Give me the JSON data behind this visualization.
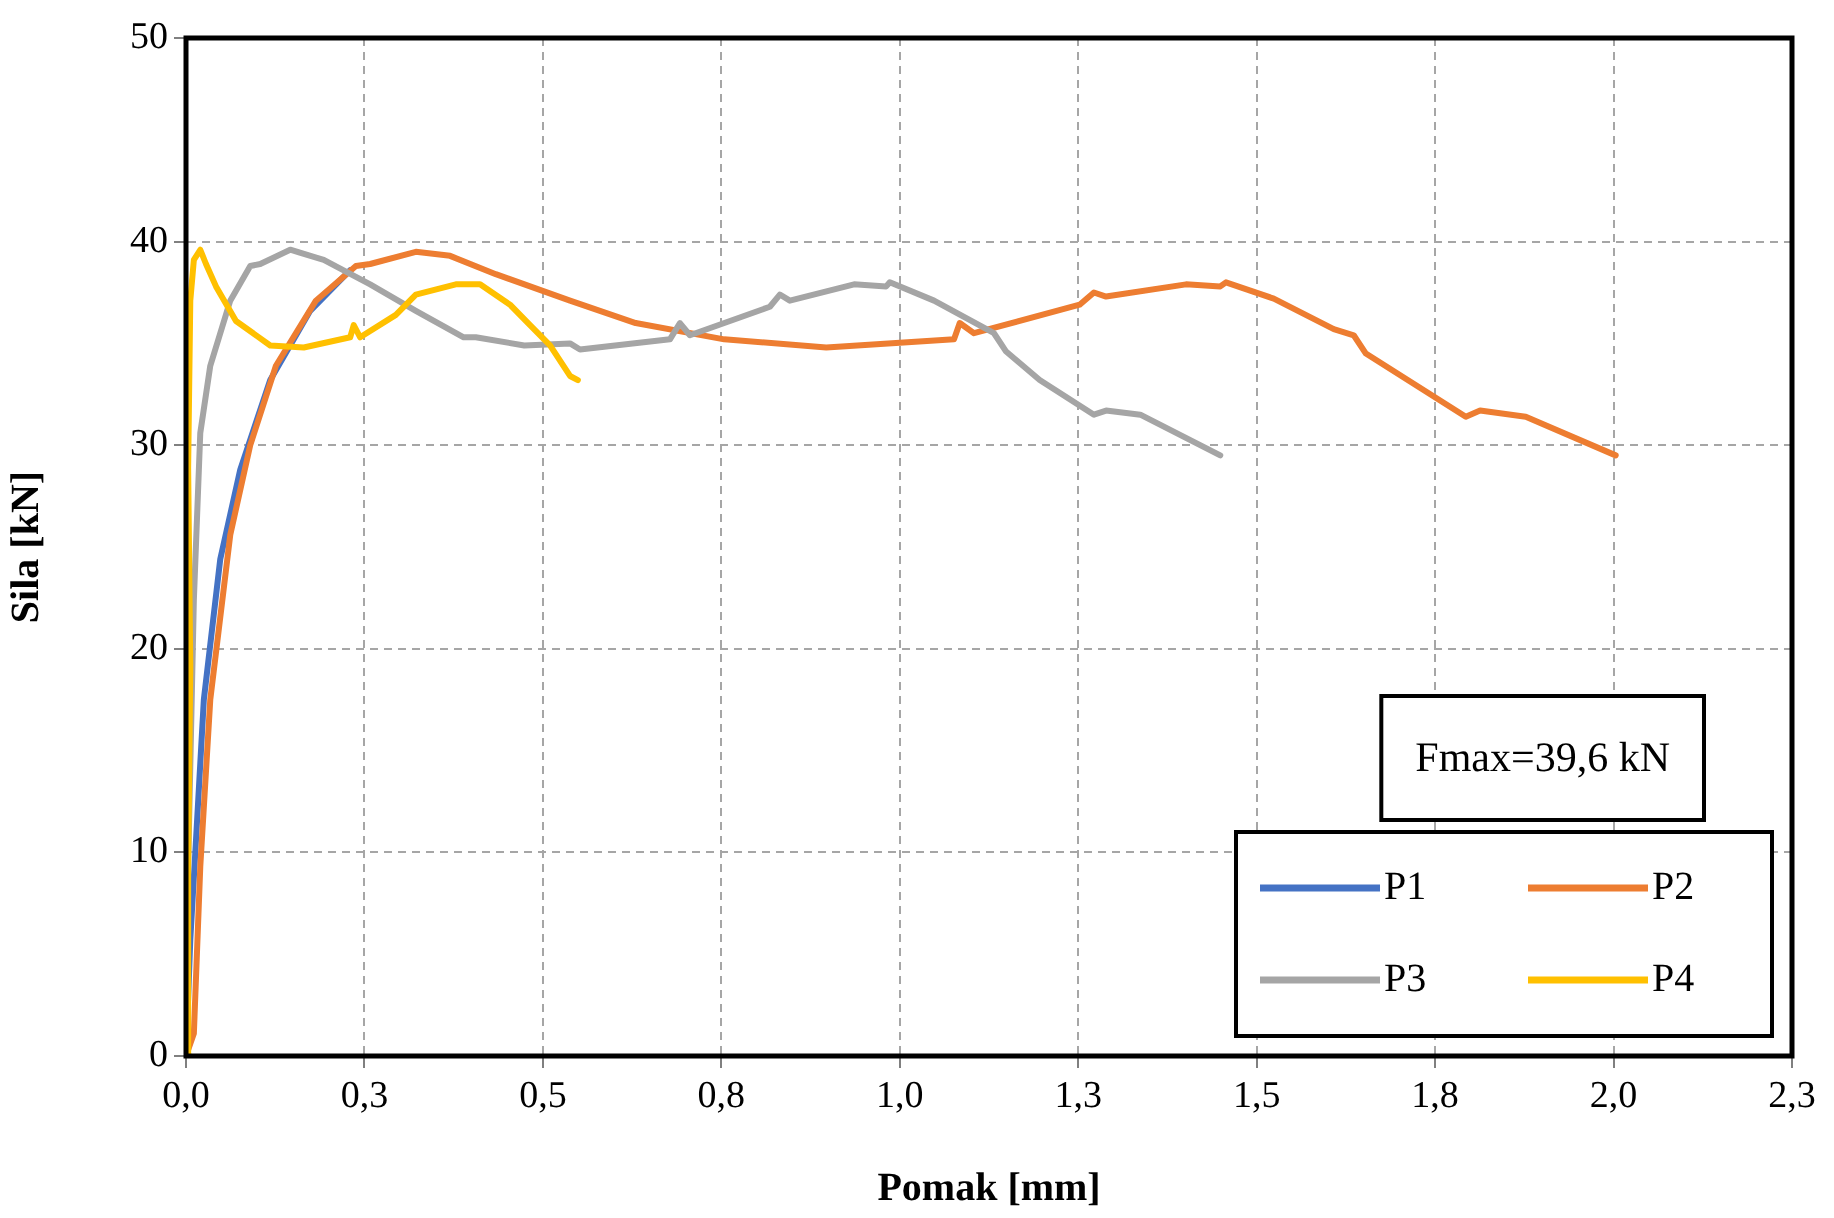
{
  "chart_data": {
    "type": "line",
    "xlabel": "Pomak [mm]",
    "ylabel": "Sila [kN]",
    "xlim": [
      0,
      2.25
    ],
    "ylim": [
      0,
      50
    ],
    "xticks": [
      {
        "value": 0,
        "label": "0,0"
      },
      {
        "value": 0.25,
        "label": "0,3"
      },
      {
        "value": 0.5,
        "label": "0,5"
      },
      {
        "value": 0.75,
        "label": "0,8"
      },
      {
        "value": 1,
        "label": "1,0"
      },
      {
        "value": 1.25,
        "label": "1,3"
      },
      {
        "value": 1.5,
        "label": "1,5"
      },
      {
        "value": 1.75,
        "label": "1,8"
      },
      {
        "value": 2,
        "label": "2,0"
      },
      {
        "value": 2.25,
        "label": "2,3"
      }
    ],
    "yticks": [
      0,
      10,
      20,
      30,
      40,
      50
    ],
    "grid": true,
    "legend": "bottom right",
    "marker": "none",
    "line_style": "solid",
    "annotations": [
      "Fmax=39,6 kN"
    ],
    "series": [
      {
        "name": "P1",
        "color": "#4472c4",
        "x": [
          0,
          0.006,
          0.014,
          0.025,
          0.048,
          0.076,
          0.118,
          0.174,
          0.23
        ],
        "values": [
          0,
          5.7,
          10.6,
          17.5,
          24.4,
          28.8,
          33.2,
          36.6,
          38.6
        ]
      },
      {
        "name": "P2",
        "color": "#ed7d31",
        "x": [
          0,
          0.011,
          0.02,
          0.034,
          0.062,
          0.09,
          0.126,
          0.182,
          0.238,
          0.258,
          0.322,
          0.37,
          0.434,
          0.538,
          0.63,
          0.754,
          0.897,
          1.076,
          1.084,
          1.104,
          1.252,
          1.272,
          1.289,
          1.401,
          1.449,
          1.457,
          1.524,
          1.608,
          1.636,
          1.653,
          1.793,
          1.813,
          1.877,
          2.003
        ],
        "values": [
          0,
          1.1,
          9.3,
          17.5,
          25.6,
          30,
          33.9,
          37.1,
          38.8,
          38.9,
          39.5,
          39.3,
          38.4,
          37.1,
          36,
          35.2,
          34.8,
          35.2,
          36,
          35.5,
          36.9,
          37.5,
          37.3,
          37.9,
          37.8,
          38,
          37.2,
          35.7,
          35.4,
          34.5,
          31.4,
          31.7,
          31.4,
          29.5
        ]
      },
      {
        "name": "P3",
        "color": "#a5a5a5",
        "x": [
          0,
          0.003,
          0.011,
          0.02,
          0.034,
          0.062,
          0.09,
          0.104,
          0.146,
          0.193,
          0.258,
          0.322,
          0.389,
          0.406,
          0.474,
          0.538,
          0.552,
          0.678,
          0.692,
          0.706,
          0.818,
          0.832,
          0.846,
          0.936,
          0.981,
          0.986,
          1.048,
          1.132,
          1.149,
          1.196,
          1.272,
          1.289,
          1.337,
          1.449
        ],
        "values": [
          0,
          9.3,
          22.4,
          30.6,
          33.9,
          37.1,
          38.8,
          38.9,
          39.6,
          39.1,
          37.9,
          36.6,
          35.3,
          35.3,
          34.9,
          35,
          34.7,
          35.2,
          36,
          35.4,
          36.8,
          37.4,
          37.1,
          37.9,
          37.8,
          38,
          37.1,
          35.5,
          34.6,
          33.2,
          31.5,
          31.7,
          31.5,
          29.5
        ]
      },
      {
        "name": "P4",
        "color": "#ffc000",
        "x": [
          0.005,
          0.003,
          0.006,
          0.003,
          0.006,
          0.011,
          0.02,
          0.028,
          0.042,
          0.07,
          0.118,
          0.165,
          0.23,
          0.235,
          0.244,
          0.294,
          0.322,
          0.378,
          0.412,
          0.454,
          0.482,
          0.51,
          0.538,
          0.549
        ],
        "values": [
          0,
          9.3,
          19.1,
          28.9,
          37.1,
          39.1,
          39.6,
          38.9,
          37.8,
          36.1,
          34.9,
          34.8,
          35.3,
          35.9,
          35.3,
          36.4,
          37.4,
          37.9,
          37.9,
          36.9,
          35.9,
          34.9,
          33.4,
          33.2
        ]
      }
    ]
  }
}
